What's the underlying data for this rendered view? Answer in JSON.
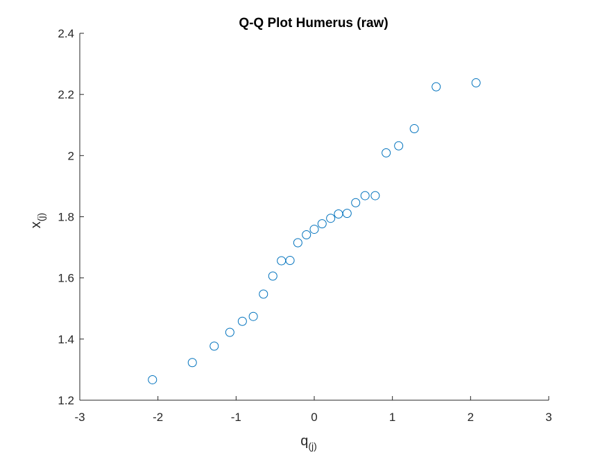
{
  "chart_data": {
    "type": "scatter",
    "title": "Q-Q Plot Humerus (raw)",
    "xlabel": {
      "main": "q",
      "subscript": "(j)"
    },
    "ylabel": {
      "main": "x",
      "subscript": "(j)"
    },
    "xlim": [
      -3,
      3
    ],
    "ylim": [
      1.2,
      2.4
    ],
    "xticks": [
      -3,
      -2,
      -1,
      0,
      1,
      2,
      3
    ],
    "yticks": [
      1.2,
      1.4,
      1.6,
      1.8,
      2.0,
      2.2,
      2.4
    ],
    "xtick_labels": [
      "-3",
      "-2",
      "-1",
      "0",
      "1",
      "2",
      "3"
    ],
    "ytick_labels": [
      "1.2",
      "1.4",
      "1.6",
      "1.8",
      "2",
      "2.2",
      "2.4"
    ],
    "grid": false,
    "marker": "open-circle",
    "marker_color": "#0072bd",
    "axis_color": "#262626",
    "points": [
      {
        "x": -2.07,
        "y": 1.267
      },
      {
        "x": -1.56,
        "y": 1.323
      },
      {
        "x": -1.28,
        "y": 1.377
      },
      {
        "x": -1.08,
        "y": 1.422
      },
      {
        "x": -0.92,
        "y": 1.458
      },
      {
        "x": -0.78,
        "y": 1.474
      },
      {
        "x": -0.65,
        "y": 1.547
      },
      {
        "x": -0.53,
        "y": 1.606
      },
      {
        "x": -0.42,
        "y": 1.656
      },
      {
        "x": -0.31,
        "y": 1.657
      },
      {
        "x": -0.21,
        "y": 1.715
      },
      {
        "x": -0.1,
        "y": 1.741
      },
      {
        "x": 0.0,
        "y": 1.759
      },
      {
        "x": 0.1,
        "y": 1.777
      },
      {
        "x": 0.21,
        "y": 1.795
      },
      {
        "x": 0.31,
        "y": 1.809
      },
      {
        "x": 0.42,
        "y": 1.811
      },
      {
        "x": 0.53,
        "y": 1.846
      },
      {
        "x": 0.65,
        "y": 1.869
      },
      {
        "x": 0.78,
        "y": 1.869
      },
      {
        "x": 0.92,
        "y": 2.009
      },
      {
        "x": 1.08,
        "y": 2.032
      },
      {
        "x": 1.28,
        "y": 2.088
      },
      {
        "x": 1.56,
        "y": 2.225
      },
      {
        "x": 2.07,
        "y": 2.238
      }
    ]
  }
}
